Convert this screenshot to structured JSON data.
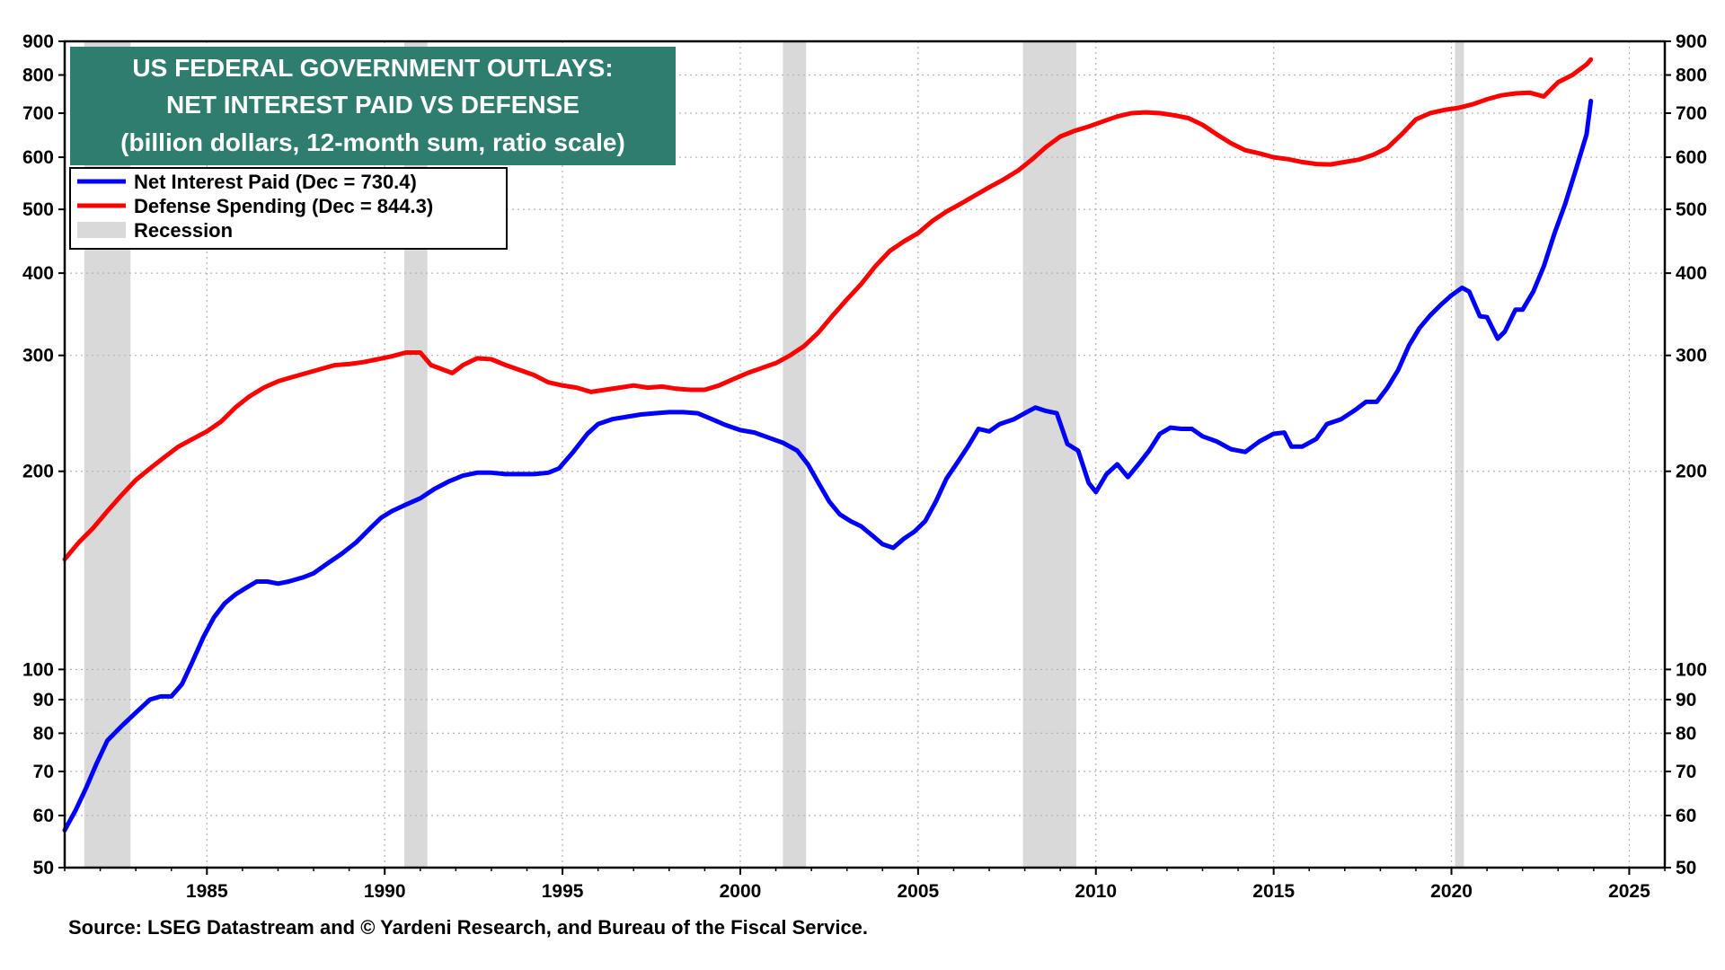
{
  "chart_data": {
    "type": "line",
    "title_lines": [
      "US FEDERAL GOVERNMENT OUTLAYS:",
      "NET INTEREST PAID VS DEFENSE",
      "(billion dollars, 12-month sum, ratio scale)"
    ],
    "source": "Source: LSEG Datastream and © Yardeni Research, and Bureau of the Fiscal Service.",
    "y_scale": "log",
    "ylim": [
      50,
      900
    ],
    "xlim": [
      1981,
      2026
    ],
    "grid": true,
    "legend_placement": "top-left",
    "x_ticks": [
      1985,
      1990,
      1995,
      2000,
      2005,
      2010,
      2015,
      2020,
      2025
    ],
    "x_tick_labels": [
      "1985",
      "1990",
      "1995",
      "2000",
      "2005",
      "2010",
      "2015",
      "2020",
      "2025"
    ],
    "y_ticks": [
      50,
      60,
      70,
      80,
      90,
      100,
      200,
      300,
      400,
      500,
      600,
      700,
      800,
      900
    ],
    "y_tick_labels": [
      "50",
      "60",
      "70",
      "80",
      "90",
      "100",
      "200",
      "300",
      "400",
      "500",
      "600",
      "700",
      "800",
      "900"
    ],
    "recessions": [
      {
        "start": 1981.55,
        "end": 1982.85,
        "label": "Recession"
      },
      {
        "start": 1990.55,
        "end": 1991.2,
        "label": "Recession"
      },
      {
        "start": 2001.2,
        "end": 2001.85,
        "label": "Recession"
      },
      {
        "start": 2007.95,
        "end": 2009.45,
        "label": "Recession"
      },
      {
        "start": 2020.1,
        "end": 2020.35,
        "label": "Recession"
      }
    ],
    "legend": [
      {
        "label": "Net Interest Paid (Dec = 730.4)",
        "kind": "line",
        "color": "#0000ff"
      },
      {
        "label": "Defense Spending (Dec = 844.3)",
        "kind": "line",
        "color": "#ff0000"
      },
      {
        "label": "Recession",
        "kind": "box",
        "color": "#d9d9d9"
      }
    ],
    "series": [
      {
        "name": "Net Interest Paid (Dec = 730.4)",
        "color": "#0000ff",
        "points": [
          [
            1981.0,
            57
          ],
          [
            1981.3,
            61
          ],
          [
            1981.6,
            66
          ],
          [
            1981.9,
            72
          ],
          [
            1982.2,
            78
          ],
          [
            1982.6,
            82
          ],
          [
            1983.0,
            86
          ],
          [
            1983.4,
            90
          ],
          [
            1983.7,
            91
          ],
          [
            1984.0,
            91
          ],
          [
            1984.3,
            95
          ],
          [
            1984.6,
            103
          ],
          [
            1984.9,
            112
          ],
          [
            1985.2,
            120
          ],
          [
            1985.5,
            126
          ],
          [
            1985.8,
            130
          ],
          [
            1986.1,
            133
          ],
          [
            1986.4,
            136
          ],
          [
            1986.7,
            136
          ],
          [
            1987.0,
            135
          ],
          [
            1987.3,
            136
          ],
          [
            1987.7,
            138
          ],
          [
            1988.0,
            140
          ],
          [
            1988.4,
            145
          ],
          [
            1988.8,
            150
          ],
          [
            1989.2,
            156
          ],
          [
            1989.6,
            164
          ],
          [
            1989.9,
            170
          ],
          [
            1990.2,
            174
          ],
          [
            1990.6,
            178
          ],
          [
            1991.0,
            182
          ],
          [
            1991.4,
            188
          ],
          [
            1991.8,
            193
          ],
          [
            1992.2,
            197
          ],
          [
            1992.6,
            199
          ],
          [
            1993.0,
            199
          ],
          [
            1993.4,
            198
          ],
          [
            1993.8,
            198
          ],
          [
            1994.2,
            198
          ],
          [
            1994.6,
            199
          ],
          [
            1994.9,
            202
          ],
          [
            1995.3,
            214
          ],
          [
            1995.7,
            228
          ],
          [
            1996.0,
            236
          ],
          [
            1996.4,
            240
          ],
          [
            1996.8,
            242
          ],
          [
            1997.2,
            244
          ],
          [
            1997.6,
            245
          ],
          [
            1998.0,
            246
          ],
          [
            1998.4,
            246
          ],
          [
            1998.8,
            245
          ],
          [
            1999.2,
            240
          ],
          [
            1999.6,
            235
          ],
          [
            2000.0,
            231
          ],
          [
            2000.4,
            229
          ],
          [
            2000.8,
            225
          ],
          [
            2001.2,
            221
          ],
          [
            2001.6,
            215
          ],
          [
            2001.9,
            205
          ],
          [
            2002.2,
            192
          ],
          [
            2002.5,
            180
          ],
          [
            2002.8,
            172
          ],
          [
            2003.1,
            168
          ],
          [
            2003.4,
            165
          ],
          [
            2003.7,
            160
          ],
          [
            2004.0,
            155
          ],
          [
            2004.3,
            153
          ],
          [
            2004.6,
            158
          ],
          [
            2004.9,
            162
          ],
          [
            2005.2,
            168
          ],
          [
            2005.5,
            180
          ],
          [
            2005.8,
            195
          ],
          [
            2006.1,
            206
          ],
          [
            2006.4,
            218
          ],
          [
            2006.7,
            232
          ],
          [
            2007.0,
            230
          ],
          [
            2007.3,
            236
          ],
          [
            2007.7,
            240
          ],
          [
            2008.0,
            245
          ],
          [
            2008.3,
            250
          ],
          [
            2008.6,
            247
          ],
          [
            2008.9,
            245
          ],
          [
            2009.2,
            220
          ],
          [
            2009.5,
            215
          ],
          [
            2009.8,
            192
          ],
          [
            2010.0,
            186
          ],
          [
            2010.3,
            198
          ],
          [
            2010.6,
            205
          ],
          [
            2010.9,
            196
          ],
          [
            2011.2,
            205
          ],
          [
            2011.5,
            215
          ],
          [
            2011.8,
            228
          ],
          [
            2012.1,
            233
          ],
          [
            2012.4,
            232
          ],
          [
            2012.7,
            232
          ],
          [
            2013.0,
            226
          ],
          [
            2013.4,
            222
          ],
          [
            2013.8,
            216
          ],
          [
            2014.2,
            214
          ],
          [
            2014.6,
            222
          ],
          [
            2015.0,
            228
          ],
          [
            2015.3,
            229
          ],
          [
            2015.5,
            218
          ],
          [
            2015.8,
            218
          ],
          [
            2016.2,
            224
          ],
          [
            2016.5,
            236
          ],
          [
            2016.9,
            240
          ],
          [
            2017.3,
            248
          ],
          [
            2017.6,
            255
          ],
          [
            2017.9,
            255
          ],
          [
            2018.2,
            268
          ],
          [
            2018.5,
            285
          ],
          [
            2018.8,
            310
          ],
          [
            2019.1,
            330
          ],
          [
            2019.4,
            345
          ],
          [
            2019.7,
            358
          ],
          [
            2020.0,
            370
          ],
          [
            2020.3,
            380
          ],
          [
            2020.5,
            375
          ],
          [
            2020.8,
            344
          ],
          [
            2021.0,
            343
          ],
          [
            2021.3,
            318
          ],
          [
            2021.5,
            326
          ],
          [
            2021.8,
            352
          ],
          [
            2022.0,
            352
          ],
          [
            2022.3,
            375
          ],
          [
            2022.6,
            410
          ],
          [
            2022.9,
            460
          ],
          [
            2023.2,
            510
          ],
          [
            2023.5,
            575
          ],
          [
            2023.8,
            650
          ],
          [
            2023.92,
            730.4
          ]
        ]
      },
      {
        "name": "Defense Spending (Dec = 844.3)",
        "color": "#ff0000",
        "points": [
          [
            1981.0,
            147
          ],
          [
            1981.4,
            156
          ],
          [
            1981.8,
            164
          ],
          [
            1982.2,
            174
          ],
          [
            1982.6,
            184
          ],
          [
            1983.0,
            194
          ],
          [
            1983.4,
            202
          ],
          [
            1983.8,
            210
          ],
          [
            1984.2,
            218
          ],
          [
            1984.6,
            224
          ],
          [
            1985.0,
            230
          ],
          [
            1985.4,
            238
          ],
          [
            1985.8,
            250
          ],
          [
            1986.2,
            260
          ],
          [
            1986.6,
            268
          ],
          [
            1987.0,
            274
          ],
          [
            1987.4,
            278
          ],
          [
            1987.8,
            282
          ],
          [
            1988.2,
            286
          ],
          [
            1988.6,
            290
          ],
          [
            1989.0,
            291
          ],
          [
            1989.4,
            293
          ],
          [
            1989.8,
            296
          ],
          [
            1990.2,
            299
          ],
          [
            1990.6,
            303
          ],
          [
            1991.0,
            303
          ],
          [
            1991.3,
            290
          ],
          [
            1991.6,
            286
          ],
          [
            1991.9,
            282
          ],
          [
            1992.2,
            290
          ],
          [
            1992.6,
            297
          ],
          [
            1993.0,
            296
          ],
          [
            1993.4,
            290
          ],
          [
            1993.8,
            285
          ],
          [
            1994.2,
            280
          ],
          [
            1994.6,
            273
          ],
          [
            1995.0,
            270
          ],
          [
            1995.4,
            268
          ],
          [
            1995.8,
            264
          ],
          [
            1996.2,
            266
          ],
          [
            1996.6,
            268
          ],
          [
            1997.0,
            270
          ],
          [
            1997.4,
            268
          ],
          [
            1997.8,
            269
          ],
          [
            1998.2,
            267
          ],
          [
            1998.6,
            266
          ],
          [
            1999.0,
            266
          ],
          [
            1999.4,
            270
          ],
          [
            1999.8,
            276
          ],
          [
            2000.2,
            282
          ],
          [
            2000.6,
            287
          ],
          [
            2001.0,
            292
          ],
          [
            2001.4,
            300
          ],
          [
            2001.8,
            310
          ],
          [
            2002.2,
            325
          ],
          [
            2002.6,
            345
          ],
          [
            2003.0,
            365
          ],
          [
            2003.4,
            385
          ],
          [
            2003.8,
            410
          ],
          [
            2004.2,
            432
          ],
          [
            2004.6,
            447
          ],
          [
            2005.0,
            460
          ],
          [
            2005.4,
            480
          ],
          [
            2005.8,
            496
          ],
          [
            2006.2,
            510
          ],
          [
            2006.6,
            525
          ],
          [
            2007.0,
            540
          ],
          [
            2007.4,
            555
          ],
          [
            2007.8,
            572
          ],
          [
            2008.2,
            595
          ],
          [
            2008.6,
            622
          ],
          [
            2009.0,
            645
          ],
          [
            2009.4,
            658
          ],
          [
            2009.8,
            668
          ],
          [
            2010.2,
            680
          ],
          [
            2010.6,
            692
          ],
          [
            2011.0,
            700
          ],
          [
            2011.4,
            702
          ],
          [
            2011.8,
            700
          ],
          [
            2012.2,
            695
          ],
          [
            2012.6,
            688
          ],
          [
            2013.0,
            672
          ],
          [
            2013.4,
            650
          ],
          [
            2013.8,
            630
          ],
          [
            2014.2,
            615
          ],
          [
            2014.6,
            608
          ],
          [
            2015.0,
            600
          ],
          [
            2015.4,
            596
          ],
          [
            2015.8,
            590
          ],
          [
            2016.2,
            586
          ],
          [
            2016.6,
            585
          ],
          [
            2017.0,
            590
          ],
          [
            2017.4,
            595
          ],
          [
            2017.8,
            605
          ],
          [
            2018.2,
            620
          ],
          [
            2018.6,
            650
          ],
          [
            2019.0,
            685
          ],
          [
            2019.4,
            700
          ],
          [
            2019.8,
            708
          ],
          [
            2020.2,
            713
          ],
          [
            2020.6,
            722
          ],
          [
            2021.0,
            735
          ],
          [
            2021.4,
            745
          ],
          [
            2021.8,
            750
          ],
          [
            2022.2,
            752
          ],
          [
            2022.6,
            742
          ],
          [
            2023.0,
            780
          ],
          [
            2023.4,
            800
          ],
          [
            2023.8,
            830
          ],
          [
            2023.92,
            844.3
          ]
        ]
      }
    ]
  }
}
